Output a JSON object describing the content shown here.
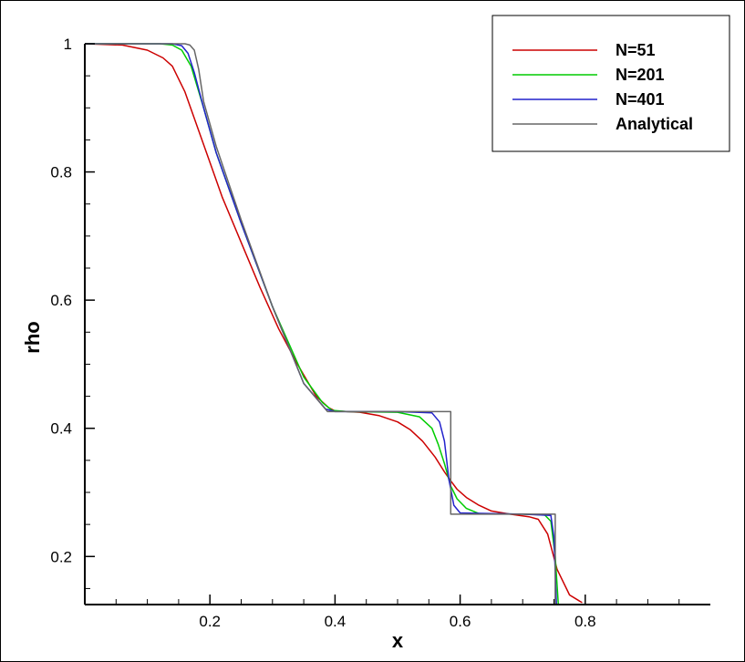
{
  "chart_data": {
    "type": "line",
    "title": "",
    "xlabel": "x",
    "ylabel": "rho",
    "xlim": [
      0.0,
      1.0
    ],
    "ylim": [
      0.125,
      1.0
    ],
    "xticks": [
      "0.2",
      "0.4",
      "0.6",
      "0.8"
    ],
    "yticks": [
      "0.2",
      "0.4",
      "0.6",
      "0.8",
      "1"
    ],
    "grid": false,
    "legend_position": "top-right",
    "series": [
      {
        "name": "N=51",
        "color": "#cc0000",
        "x": [
          0.0,
          0.06,
          0.1,
          0.125,
          0.14,
          0.16,
          0.18,
          0.2,
          0.22,
          0.25,
          0.28,
          0.31,
          0.34,
          0.37,
          0.39,
          0.4,
          0.42,
          0.44,
          0.47,
          0.5,
          0.52,
          0.54,
          0.56,
          0.575,
          0.585,
          0.595,
          0.61,
          0.63,
          0.65,
          0.68,
          0.71,
          0.725,
          0.74,
          0.755,
          0.775,
          0.795
        ],
        "y": [
          1.0,
          0.998,
          0.99,
          0.978,
          0.965,
          0.925,
          0.87,
          0.815,
          0.76,
          0.69,
          0.62,
          0.555,
          0.5,
          0.45,
          0.432,
          0.427,
          0.426,
          0.425,
          0.42,
          0.41,
          0.398,
          0.38,
          0.355,
          0.332,
          0.318,
          0.305,
          0.292,
          0.28,
          0.271,
          0.266,
          0.262,
          0.258,
          0.235,
          0.18,
          0.14,
          0.128
        ]
      },
      {
        "name": "N=201",
        "color": "#00cc00",
        "x": [
          0.0,
          0.12,
          0.14,
          0.155,
          0.17,
          0.19,
          0.21,
          0.25,
          0.3,
          0.35,
          0.38,
          0.395,
          0.42,
          0.5,
          0.535,
          0.555,
          0.565,
          0.575,
          0.585,
          0.595,
          0.61,
          0.63,
          0.7,
          0.735,
          0.745,
          0.752,
          0.757
        ],
        "y": [
          1.0,
          1.0,
          0.998,
          0.99,
          0.965,
          0.9,
          0.83,
          0.72,
          0.59,
          0.48,
          0.44,
          0.428,
          0.426,
          0.425,
          0.418,
          0.4,
          0.375,
          0.345,
          0.31,
          0.29,
          0.275,
          0.267,
          0.266,
          0.265,
          0.255,
          0.2,
          0.125
        ]
      },
      {
        "name": "N=401",
        "color": "#2222cc",
        "x": [
          0.0,
          0.14,
          0.155,
          0.165,
          0.175,
          0.19,
          0.21,
          0.25,
          0.3,
          0.35,
          0.385,
          0.4,
          0.5,
          0.555,
          0.567,
          0.575,
          0.582,
          0.59,
          0.6,
          0.7,
          0.745,
          0.75,
          0.754
        ],
        "y": [
          1.0,
          1.0,
          0.997,
          0.985,
          0.955,
          0.9,
          0.83,
          0.72,
          0.59,
          0.47,
          0.43,
          0.426,
          0.426,
          0.424,
          0.41,
          0.38,
          0.32,
          0.28,
          0.268,
          0.266,
          0.264,
          0.23,
          0.125
        ]
      },
      {
        "name": "Analytical",
        "color": "#666666",
        "x": [
          0.0,
          0.16,
          0.168,
          0.175,
          0.182,
          0.19,
          0.21,
          0.25,
          0.3,
          0.35,
          0.388,
          0.585,
          0.585,
          0.752,
          0.752
        ],
        "y": [
          1.0,
          1.0,
          0.998,
          0.99,
          0.96,
          0.91,
          0.84,
          0.725,
          0.59,
          0.47,
          0.426,
          0.426,
          0.266,
          0.266,
          0.125
        ]
      }
    ]
  }
}
